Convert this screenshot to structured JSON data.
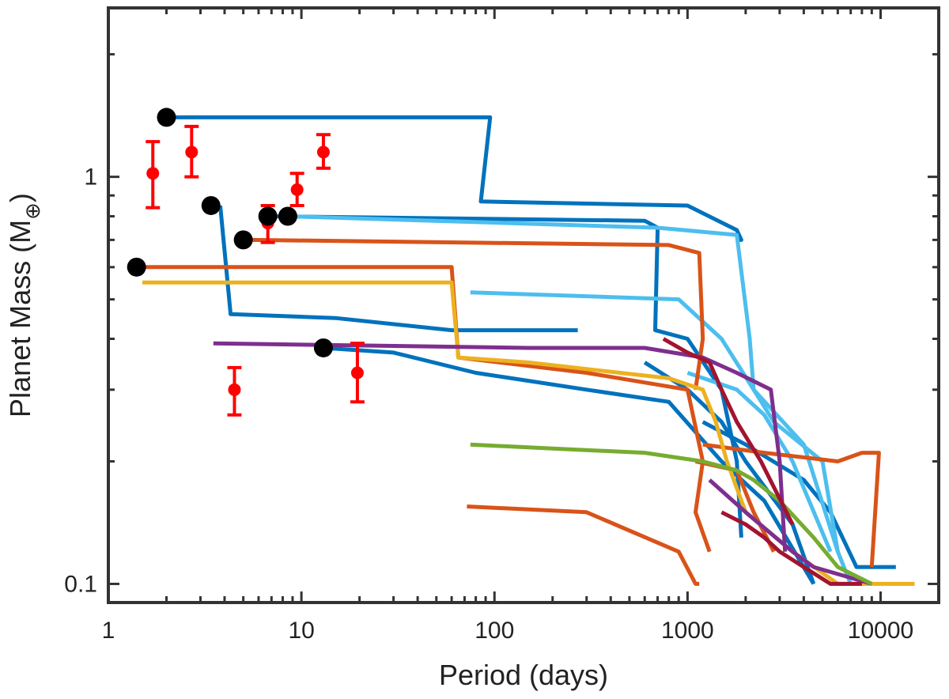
{
  "chart_data": {
    "type": "line",
    "xlabel": "Period (days)",
    "ylabel": "Planet Mass (M",
    "ylabel_subscript": "⊕",
    "ylabel_close": ")",
    "x_scale": "log",
    "y_scale": "log",
    "xlim": [
      1,
      20000
    ],
    "ylim": [
      0.09,
      2.6
    ],
    "x_ticks": [
      1,
      10,
      100,
      1000,
      10000
    ],
    "x_tick_labels": [
      "1",
      "10",
      "100",
      "1000",
      "10000"
    ],
    "y_ticks": [
      0.1,
      1
    ],
    "y_tick_labels": [
      "0.1",
      "1"
    ],
    "grid": false,
    "legend": "none",
    "colors": {
      "axis": "#333333",
      "observed": "#ff0000",
      "initial": "#000000"
    },
    "observed_planets": [
      {
        "period": 1.7,
        "mass": 1.02,
        "err_low": 0.18,
        "err_high": 0.2
      },
      {
        "period": 2.7,
        "mass": 1.15,
        "err_low": 0.15,
        "err_high": 0.18
      },
      {
        "period": 4.5,
        "mass": 0.3,
        "err_low": 0.04,
        "err_high": 0.04
      },
      {
        "period": 6.7,
        "mass": 0.77,
        "err_low": 0.08,
        "err_high": 0.08
      },
      {
        "period": 9.5,
        "mass": 0.93,
        "err_low": 0.08,
        "err_high": 0.09
      },
      {
        "period": 13.0,
        "mass": 1.15,
        "err_low": 0.1,
        "err_high": 0.12
      },
      {
        "period": 19.5,
        "mass": 0.33,
        "err_low": 0.05,
        "err_high": 0.06
      }
    ],
    "initial_planets": [
      {
        "period": 1.4,
        "mass": 0.6
      },
      {
        "period": 2.0,
        "mass": 1.4
      },
      {
        "period": 3.4,
        "mass": 0.85
      },
      {
        "period": 5.0,
        "mass": 0.7
      },
      {
        "period": 6.7,
        "mass": 0.8
      },
      {
        "period": 8.5,
        "mass": 0.8
      },
      {
        "period": 13.0,
        "mass": 0.38
      }
    ],
    "series": [
      {
        "color": "#0072bd",
        "x": [
          2.1,
          95,
          85,
          1000,
          1800,
          1900,
          1800
        ],
        "y": [
          1.4,
          1.4,
          0.87,
          0.85,
          0.74,
          0.7,
          0.7
        ]
      },
      {
        "color": "#0072bd",
        "x": [
          3.8,
          4.3,
          15,
          60,
          270
        ],
        "y": [
          0.85,
          0.46,
          0.45,
          0.42,
          0.42
        ]
      },
      {
        "color": "#0072bd",
        "x": [
          7,
          600,
          700,
          680,
          1000,
          1500,
          1800,
          1900
        ],
        "y": [
          0.8,
          0.78,
          0.75,
          0.42,
          0.4,
          0.3,
          0.2,
          0.13
        ]
      },
      {
        "color": "#0072bd",
        "x": [
          13,
          30,
          80,
          300,
          800,
          1500,
          2500,
          4500
        ],
        "y": [
          0.38,
          0.37,
          0.33,
          0.3,
          0.28,
          0.2,
          0.16,
          0.1
        ]
      },
      {
        "color": "#0072bd",
        "x": [
          600,
          1000,
          1500,
          2000,
          3500,
          4500
        ],
        "y": [
          0.35,
          0.3,
          0.25,
          0.2,
          0.14,
          0.1
        ]
      },
      {
        "color": "#0072bd",
        "x": [
          1200,
          2000,
          4000,
          5500,
          7500,
          12000
        ],
        "y": [
          0.25,
          0.22,
          0.18,
          0.15,
          0.11,
          0.11
        ]
      },
      {
        "color": "#4dbeee",
        "x": [
          8.5,
          700,
          1800,
          2100,
          2200,
          2800,
          5000,
          6000,
          7000
        ],
        "y": [
          0.8,
          0.75,
          0.72,
          0.4,
          0.3,
          0.25,
          0.2,
          0.12,
          0.1
        ]
      },
      {
        "color": "#4dbeee",
        "x": [
          75,
          900,
          1500,
          2200,
          4000,
          6000
        ],
        "y": [
          0.52,
          0.5,
          0.4,
          0.3,
          0.22,
          0.12
        ]
      },
      {
        "color": "#4dbeee",
        "x": [
          1000,
          1800,
          2500,
          3500,
          5500
        ],
        "y": [
          0.33,
          0.3,
          0.26,
          0.2,
          0.12
        ]
      },
      {
        "color": "#d95319",
        "x": [
          1.5,
          60,
          65,
          300,
          1000,
          1200,
          1100,
          1300
        ],
        "y": [
          0.6,
          0.6,
          0.36,
          0.33,
          0.3,
          0.2,
          0.15,
          0.12
        ]
      },
      {
        "color": "#d95319",
        "x": [
          5.5,
          800,
          1150,
          1200,
          1100
        ],
        "y": [
          0.7,
          0.68,
          0.65,
          0.4,
          0.3
        ]
      },
      {
        "color": "#d95319",
        "x": [
          72,
          300,
          900,
          1100,
          1150
        ],
        "y": [
          0.155,
          0.15,
          0.12,
          0.1,
          0.1
        ]
      },
      {
        "color": "#d95319",
        "x": [
          1200,
          2500,
          6000,
          8000,
          9800,
          9000
        ],
        "y": [
          0.22,
          0.21,
          0.2,
          0.21,
          0.21,
          0.11
        ]
      },
      {
        "color": "#d95319",
        "x": [
          1100,
          1800,
          2200,
          2800
        ],
        "y": [
          0.2,
          0.19,
          0.15,
          0.12
        ]
      },
      {
        "color": "#edb120",
        "x": [
          1.5,
          60,
          65,
          150,
          800,
          1200,
          1400,
          1600,
          2000,
          3500,
          6000,
          9000,
          15000
        ],
        "y": [
          0.55,
          0.55,
          0.36,
          0.35,
          0.32,
          0.3,
          0.25,
          0.2,
          0.15,
          0.12,
          0.1,
          0.1,
          0.1
        ]
      },
      {
        "color": "#7e2f8e",
        "x": [
          3.5,
          150,
          600,
          1200,
          1800,
          2700,
          3000,
          3200
        ],
        "y": [
          0.39,
          0.38,
          0.38,
          0.36,
          0.33,
          0.3,
          0.2,
          0.12
        ]
      },
      {
        "color": "#7e2f8e",
        "x": [
          1300,
          2000,
          3500,
          4500,
          9000
        ],
        "y": [
          0.18,
          0.15,
          0.12,
          0.11,
          0.1
        ]
      },
      {
        "color": "#77ac30",
        "x": [
          75,
          200,
          600,
          1200,
          1800,
          2200,
          3000,
          4500,
          6000,
          9000
        ],
        "y": [
          0.22,
          0.215,
          0.21,
          0.2,
          0.19,
          0.18,
          0.16,
          0.13,
          0.11,
          0.1
        ]
      },
      {
        "color": "#a2142f",
        "x": [
          750,
          1000,
          1300,
          1500,
          1800,
          2400,
          3500
        ],
        "y": [
          0.4,
          0.37,
          0.35,
          0.3,
          0.25,
          0.2,
          0.14
        ]
      },
      {
        "color": "#a2142f",
        "x": [
          1500,
          2000,
          2500,
          3000,
          4000,
          5500,
          8000
        ],
        "y": [
          0.15,
          0.14,
          0.13,
          0.12,
          0.11,
          0.1,
          0.1
        ]
      }
    ]
  }
}
